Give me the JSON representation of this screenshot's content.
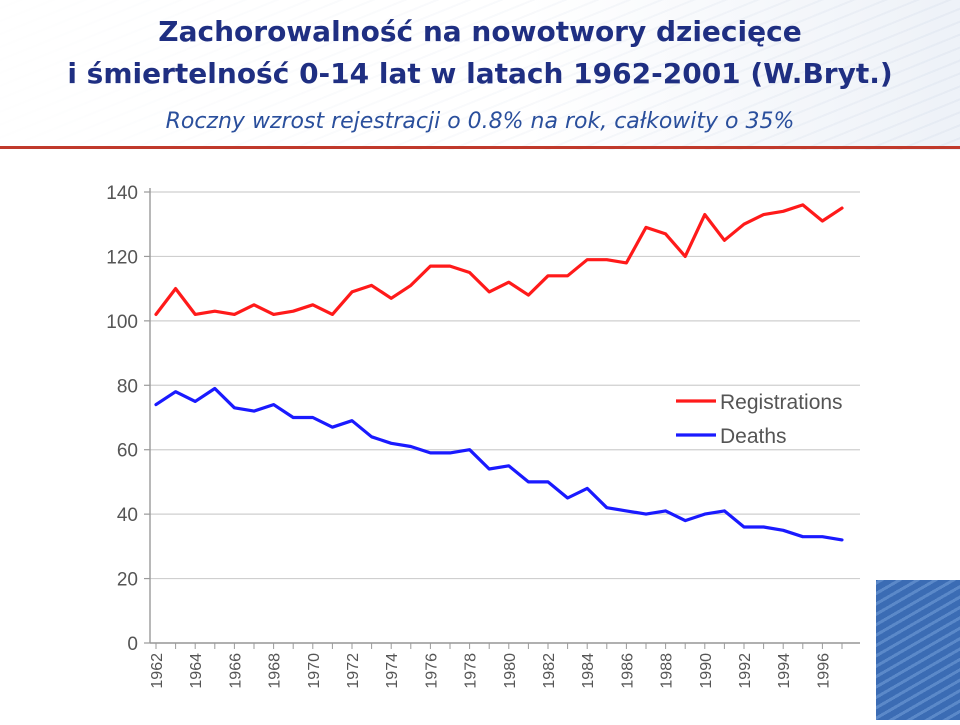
{
  "title_line_1": "Zachorowalność na nowotwory dziecięce",
  "title_line_2": "i śmiertelność 0-14 lat w latach 1962-2001 (W.Bryt.)",
  "subtitle": "Roczny wzrost rejestracji o 0.8% na rok, całkowity o 35%",
  "colors": {
    "title": "#1f2f82",
    "subtitle": "#2a4f9c",
    "divider": "#c0392b",
    "registrations": "#ff1a1a",
    "deaths": "#1a1aff"
  },
  "chart_data": {
    "type": "line",
    "title": "",
    "xlabel": "",
    "ylabel": "",
    "x": [
      1962,
      1963,
      1964,
      1965,
      1966,
      1967,
      1968,
      1969,
      1970,
      1971,
      1972,
      1973,
      1974,
      1975,
      1976,
      1977,
      1978,
      1979,
      1980,
      1981,
      1982,
      1983,
      1984,
      1985,
      1986,
      1987,
      1988,
      1989,
      1990,
      1991,
      1992,
      1993,
      1994,
      1995,
      1996,
      1997
    ],
    "x_tick_labels": [
      "1962",
      "1964",
      "1966",
      "1968",
      "1970",
      "1972",
      "1974",
      "1976",
      "1978",
      "1980",
      "1982",
      "1984",
      "1986",
      "1988",
      "1990",
      "1992",
      "1994",
      "1996"
    ],
    "xlim": [
      1962,
      1997
    ],
    "ylim": [
      0,
      140
    ],
    "y_ticks": [
      "0",
      "20",
      "40",
      "60",
      "80",
      "100",
      "120",
      "140"
    ],
    "grid": "horizontal",
    "legend_position": "right-middle",
    "series": [
      {
        "name": "Registrations",
        "color": "#ff1a1a",
        "values": [
          102,
          110,
          102,
          103,
          102,
          105,
          102,
          103,
          105,
          102,
          109,
          111,
          107,
          111,
          117,
          117,
          115,
          109,
          112,
          108,
          114,
          114,
          119,
          119,
          118,
          129,
          127,
          120,
          133,
          125,
          130,
          133,
          134,
          136,
          131,
          135
        ]
      },
      {
        "name": "Deaths",
        "color": "#1a1aff",
        "values": [
          74,
          78,
          75,
          79,
          73,
          72,
          74,
          70,
          70,
          67,
          69,
          64,
          62,
          61,
          59,
          59,
          60,
          54,
          55,
          50,
          50,
          45,
          48,
          42,
          41,
          40,
          41,
          38,
          40,
          41,
          36,
          36,
          35,
          33,
          33,
          32
        ]
      }
    ]
  }
}
